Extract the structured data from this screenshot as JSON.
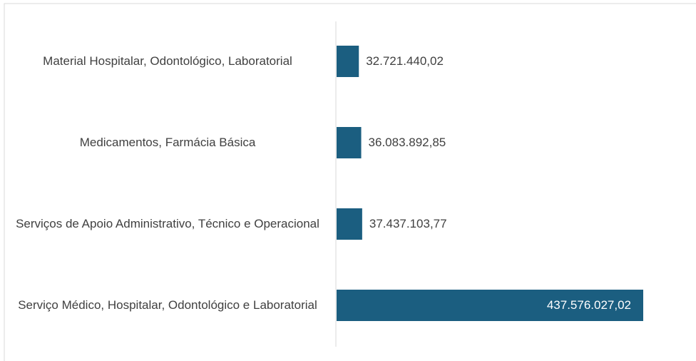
{
  "chart_data": {
    "type": "bar",
    "orientation": "horizontal",
    "categories": [
      "Material Hospitalar, Odontológico, Laboratorial",
      "Medicamentos, Farmácia Básica",
      "Serviços de Apoio Administrativo, Técnico e Operacional",
      "Serviço Médico, Hospitalar, Odontológico e Laboratorial"
    ],
    "values": [
      32721440.02,
      36083892.85,
      37437103.77,
      437576027.02
    ],
    "value_labels": [
      "32.721.440,02",
      "36.083.892,85",
      "37.437.103,77",
      "437.576.027,02"
    ],
    "color": "#1b5e80"
  }
}
